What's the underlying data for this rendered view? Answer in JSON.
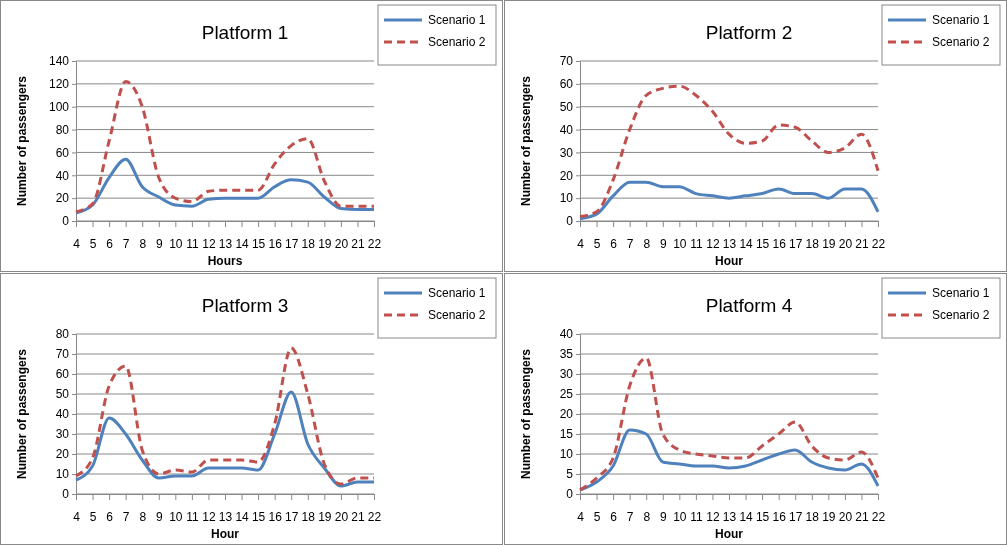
{
  "chart_data": [
    {
      "type": "line",
      "title": "Platform 1",
      "xlabel": "Hours",
      "ylabel": "Number of passengers",
      "x": [
        4,
        5,
        6,
        7,
        8,
        9,
        10,
        11,
        12,
        13,
        14,
        15,
        16,
        17,
        18,
        19,
        20,
        21,
        22
      ],
      "xlim": [
        4,
        22
      ],
      "xticks": [
        4,
        5,
        6,
        7,
        8,
        9,
        10,
        11,
        12,
        13,
        14,
        15,
        16,
        17,
        18,
        19,
        20,
        21,
        22
      ],
      "ylim": [
        0,
        140
      ],
      "yticks": [
        0,
        20,
        40,
        60,
        80,
        100,
        120,
        140
      ],
      "grid": "y",
      "legend": "top right",
      "marker": "none",
      "series": [
        {
          "name": "Scenario 1",
          "color": "#4f81bd",
          "line_style": "solid",
          "values": [
            7,
            14,
            38,
            54,
            30,
            21,
            14,
            13,
            19,
            20,
            20,
            20,
            30,
            36,
            34,
            21,
            11,
            10,
            10
          ]
        },
        {
          "name": "Scenario 2",
          "color": "#c0504d",
          "line_style": "dashed",
          "values": [
            8,
            15,
            70,
            122,
            100,
            38,
            20,
            17,
            26,
            27,
            27,
            27,
            50,
            66,
            72,
            35,
            13,
            13,
            13
          ]
        }
      ]
    },
    {
      "type": "line",
      "title": "Platform 2",
      "xlabel": "Hour",
      "ylabel": "Number of passengers",
      "x": [
        4,
        5,
        6,
        7,
        8,
        9,
        10,
        11,
        12,
        13,
        14,
        15,
        16,
        17,
        18,
        19,
        20,
        21,
        22
      ],
      "xlim": [
        4,
        22
      ],
      "xticks": [
        4,
        5,
        6,
        7,
        8,
        9,
        10,
        11,
        12,
        13,
        14,
        15,
        16,
        17,
        18,
        19,
        20,
        21,
        22
      ],
      "ylim": [
        0,
        70
      ],
      "yticks": [
        0,
        10,
        20,
        30,
        40,
        50,
        60,
        70
      ],
      "grid": "y",
      "legend": "top right",
      "marker": "none",
      "series": [
        {
          "name": "Scenario 1",
          "color": "#4f81bd",
          "line_style": "solid",
          "values": [
            1,
            3,
            11,
            17,
            17,
            15,
            15,
            12,
            11,
            10,
            11,
            12,
            14,
            12,
            12,
            10,
            14,
            14,
            4
          ]
        },
        {
          "name": "Scenario 2",
          "color": "#c0504d",
          "line_style": "dashed",
          "values": [
            2,
            4,
            18,
            40,
            55,
            58,
            59,
            55,
            48,
            38,
            34,
            35,
            42,
            41,
            35,
            30,
            32,
            38,
            22
          ]
        }
      ]
    },
    {
      "type": "line",
      "title": "Platform 3",
      "xlabel": "Hour",
      "ylabel": "Number of passengers",
      "x": [
        4,
        5,
        6,
        7,
        8,
        9,
        10,
        11,
        12,
        13,
        14,
        15,
        16,
        17,
        18,
        19,
        20,
        21,
        22
      ],
      "xlim": [
        4,
        22
      ],
      "xticks": [
        4,
        5,
        6,
        7,
        8,
        9,
        10,
        11,
        12,
        13,
        14,
        15,
        16,
        17,
        18,
        19,
        20,
        21,
        22
      ],
      "ylim": [
        0,
        80
      ],
      "yticks": [
        0,
        10,
        20,
        30,
        40,
        50,
        60,
        70,
        80
      ],
      "grid": "y",
      "legend": "top right",
      "marker": "none",
      "series": [
        {
          "name": "Scenario 1",
          "color": "#4f81bd",
          "line_style": "solid",
          "values": [
            7,
            14,
            38,
            30,
            17,
            8,
            9,
            9,
            13,
            13,
            13,
            12,
            30,
            51,
            25,
            13,
            4,
            6,
            6
          ]
        },
        {
          "name": "Scenario 2",
          "color": "#c0504d",
          "line_style": "dashed",
          "values": [
            9,
            18,
            54,
            64,
            22,
            10,
            12,
            11,
            17,
            17,
            17,
            16,
            35,
            73,
            50,
            15,
            5,
            8,
            8
          ]
        }
      ]
    },
    {
      "type": "line",
      "title": "Platform 4",
      "xlabel": "Hour",
      "ylabel": "Number of passengers",
      "x": [
        4,
        5,
        6,
        7,
        8,
        9,
        10,
        11,
        12,
        13,
        14,
        15,
        16,
        17,
        18,
        19,
        20,
        21,
        22
      ],
      "xlim": [
        4,
        22
      ],
      "xticks": [
        4,
        5,
        6,
        7,
        8,
        9,
        10,
        11,
        12,
        13,
        14,
        15,
        16,
        17,
        18,
        19,
        20,
        21,
        22
      ],
      "ylim": [
        0,
        40
      ],
      "yticks": [
        0,
        5,
        10,
        15,
        20,
        25,
        30,
        35,
        40
      ],
      "grid": "y",
      "legend": "top right",
      "marker": "none",
      "series": [
        {
          "name": "Scenario 1",
          "color": "#4f81bd",
          "line_style": "solid",
          "values": [
            1,
            3,
            7,
            16,
            15,
            8,
            7.5,
            7,
            7,
            6.5,
            7,
            8.5,
            10,
            11,
            8,
            6.5,
            6,
            7.5,
            2
          ]
        },
        {
          "name": "Scenario 2",
          "color": "#c0504d",
          "line_style": "dashed",
          "values": [
            1,
            4,
            9,
            27,
            34,
            15,
            11,
            10,
            9.5,
            9,
            9,
            12,
            15,
            18,
            12,
            9,
            8.5,
            10.5,
            4
          ]
        }
      ]
    }
  ]
}
